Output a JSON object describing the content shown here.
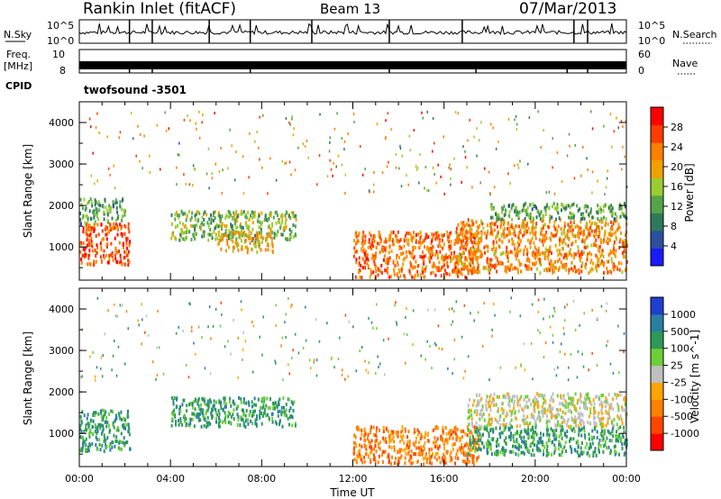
{
  "header": {
    "station": "Rankin Inlet (fitACF)",
    "beam": "Beam 13",
    "date": "07/Mar/2013"
  },
  "panels": {
    "nsky_label": "N.Sky",
    "nsky_ticks": [
      "10^5",
      "10^0"
    ],
    "nsearch_label": "N.Search",
    "nsearch_ticks": [
      "10^5",
      "10^0"
    ],
    "freq_label_1": "Freq.",
    "freq_label_2": "[MHz]",
    "freq_ticks": [
      "10",
      "8"
    ],
    "nave_label": "Nave",
    "nave_ticks": [
      "60",
      "0"
    ],
    "cpid_label": "CPID",
    "cpid_value": "twofsound -3501"
  },
  "colors": {
    "power_scale": [
      "#1a1aff",
      "#2d4fa0",
      "#2f7a5a",
      "#55a34b",
      "#9acd32",
      "#f0a000",
      "#ff7f00",
      "#ff3c00",
      "#ff0000"
    ],
    "velocity_scale": [
      "#1f3fcf",
      "#2a7fa0",
      "#2e9a56",
      "#6ccf38",
      "#bfbfbf",
      "#ffa500",
      "#ff7f00",
      "#ff4500",
      "#ff0000"
    ],
    "ground_scatter": "#c0c0c0"
  },
  "chart_data": [
    {
      "type": "heatmap",
      "name": "power",
      "ylabel": "Slant Range [km]",
      "yticks": [
        "1000",
        "2000",
        "3000",
        "4000"
      ],
      "ylim": [
        200,
        4500
      ],
      "xlim": [
        0,
        24
      ],
      "colorbar_label": "Power [dB]",
      "colorbar_ticks": [
        "4",
        "8",
        "12",
        "16",
        "20",
        "24",
        "28"
      ],
      "colorbar_range": [
        0,
        32
      ],
      "regions": [
        {
          "t": [
            0.0,
            2.2
          ],
          "r": [
            600,
            1600
          ],
          "value": 26
        },
        {
          "t": [
            0.0,
            2.0
          ],
          "r": [
            1600,
            2200
          ],
          "value": 12
        },
        {
          "t": [
            4.0,
            9.5
          ],
          "r": [
            1200,
            1900
          ],
          "value": 14
        },
        {
          "t": [
            6.0,
            8.5
          ],
          "r": [
            900,
            1400
          ],
          "value": 20
        },
        {
          "t": [
            12.0,
            17.5
          ],
          "r": [
            300,
            1400
          ],
          "value": 24
        },
        {
          "t": [
            16.5,
            24.0
          ],
          "r": [
            400,
            1700
          ],
          "value": 22
        },
        {
          "t": [
            18.0,
            24.0
          ],
          "r": [
            1700,
            2100
          ],
          "value": 12
        }
      ]
    },
    {
      "type": "heatmap",
      "name": "velocity",
      "ylabel": "Slant Range [km]",
      "xlabel": "Time UT",
      "yticks": [
        "1000",
        "2000",
        "3000",
        "4000"
      ],
      "xticks": [
        "00:00",
        "04:00",
        "08:00",
        "12:00",
        "16:00",
        "20:00",
        "00:00"
      ],
      "ylim": [
        200,
        4500
      ],
      "xlim": [
        0,
        24
      ],
      "colorbar_label": "Velocity [m s^-1]",
      "colorbar_ticks": [
        "1000",
        "500",
        "100",
        "25",
        "-25",
        "-100",
        "-500",
        "-1000"
      ],
      "regions": [
        {
          "t": [
            0.0,
            2.2
          ],
          "r": [
            600,
            1600
          ],
          "value": 200
        },
        {
          "t": [
            4.0,
            9.5
          ],
          "r": [
            1200,
            1900
          ],
          "value": 150
        },
        {
          "t": [
            12.0,
            17.5
          ],
          "r": [
            300,
            1200
          ],
          "value": -300
        },
        {
          "t": [
            17.0,
            24.0
          ],
          "r": [
            1200,
            2000
          ],
          "value": 0
        },
        {
          "t": [
            17.0,
            24.0
          ],
          "r": [
            500,
            1200
          ],
          "value": 120
        }
      ]
    }
  ]
}
